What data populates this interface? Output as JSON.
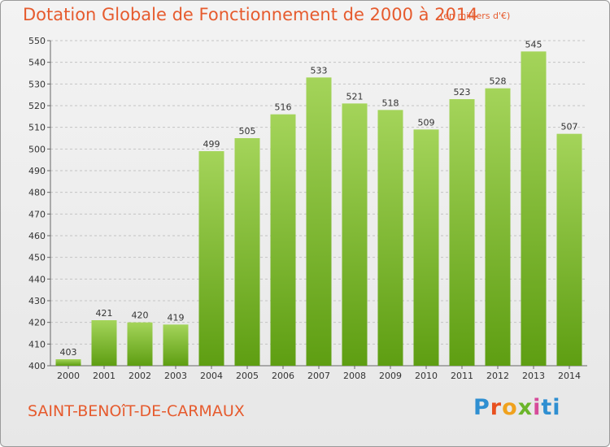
{
  "header": {
    "title": "Dotation Globale de Fonctionnement de 2000 à 2014",
    "subtitle": "(en milliers d'€)"
  },
  "footer": {
    "city": "SAINT-BENOîT-DE-CARMAUX",
    "logo_parts": [
      "P",
      "r",
      "o",
      "x",
      "i",
      "ti"
    ]
  },
  "colors": {
    "title": "#e65b2e",
    "bar_top": "#a4d45a",
    "bar_bottom": "#5e9e12"
  },
  "chart_data": {
    "type": "bar",
    "title": "Dotation Globale de Fonctionnement de 2000 à 2014",
    "subtitle": "(en milliers d'€)",
    "xlabel": "",
    "ylabel": "",
    "categories": [
      "2000",
      "2001",
      "2002",
      "2003",
      "2004",
      "2005",
      "2006",
      "2007",
      "2008",
      "2009",
      "2010",
      "2011",
      "2012",
      "2013",
      "2014"
    ],
    "values": [
      403,
      421,
      420,
      419,
      499,
      505,
      516,
      533,
      521,
      518,
      509,
      523,
      528,
      545,
      507
    ],
    "ylim": [
      400,
      550
    ],
    "yticks": [
      400,
      410,
      420,
      430,
      440,
      450,
      460,
      470,
      480,
      490,
      500,
      510,
      520,
      530,
      540,
      550
    ],
    "grid": true,
    "legend": "none"
  }
}
